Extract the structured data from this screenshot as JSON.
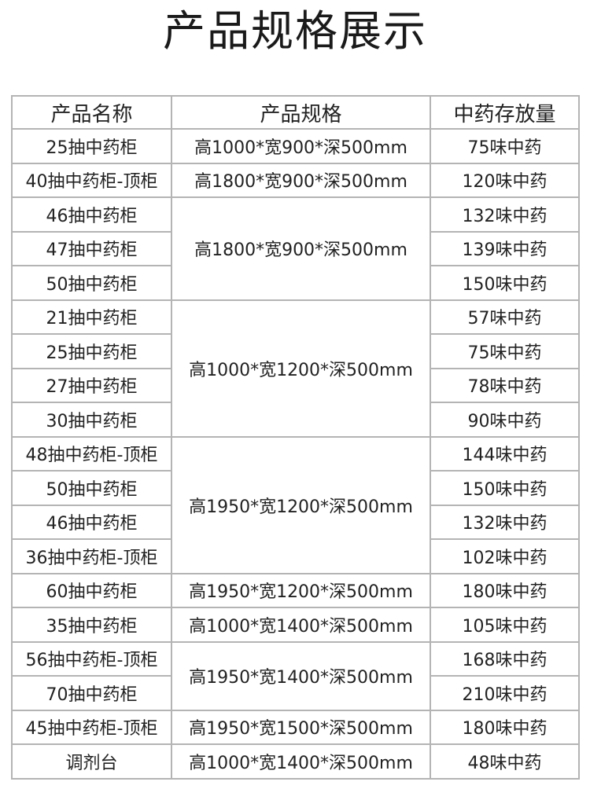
{
  "title": "产品规格展示",
  "headers": [
    "产品名称",
    "产品规格",
    "中药存放量"
  ],
  "rows": [
    {
      "name": "25抽中药柜",
      "spec": "高1000*宽900*深500mm",
      "capacity": "75味中药"
    },
    {
      "name": "40抽中药柜-顶柜",
      "spec": "高1800*宽900*深500mm",
      "capacity": "120味中药"
    },
    {
      "name": "46抽中药柜",
      "spec": "高1800*宽900*深500mm",
      "capacity": "132味中药"
    },
    {
      "name": "47抽中药柜",
      "capacity": "139味中药"
    },
    {
      "name": "50抽中药柜",
      "capacity": "150味中药"
    },
    {
      "name": "21抽中药柜",
      "spec": "高1000*宽1200*深500mm",
      "capacity": "57味中药"
    },
    {
      "name": "25抽中药柜",
      "capacity": "75味中药"
    },
    {
      "name": "27抽中药柜",
      "capacity": "78味中药"
    },
    {
      "name": "30抽中药柜",
      "capacity": "90味中药"
    },
    {
      "name": "48抽中药柜-顶柜",
      "spec": "高1950*宽1200*深500mm",
      "capacity": "144味中药"
    },
    {
      "name": "50抽中药柜",
      "capacity": "150味中药"
    },
    {
      "name": "46抽中药柜",
      "capacity": "132味中药"
    },
    {
      "name": "36抽中药柜-顶柜",
      "capacity": "102味中药"
    },
    {
      "name": "60抽中药柜",
      "spec": "高1950*宽1200*深500mm",
      "capacity": "180味中药"
    },
    {
      "name": "35抽中药柜",
      "spec": "高1000*宽1400*深500mm",
      "capacity": "105味中药"
    },
    {
      "name": "56抽中药柜-顶柜",
      "spec": "高1950*宽1400*深500mm",
      "capacity": "168味中药"
    },
    {
      "name": "70抽中药柜",
      "capacity": "210味中药"
    },
    {
      "name": "45抽中药柜-顶柜",
      "spec": "高1950*宽1500*深500mm",
      "capacity": "180味中药"
    },
    {
      "name": "调剂台",
      "spec": "高1000*宽1400*深500mm",
      "capacity": "48味中药"
    }
  ]
}
